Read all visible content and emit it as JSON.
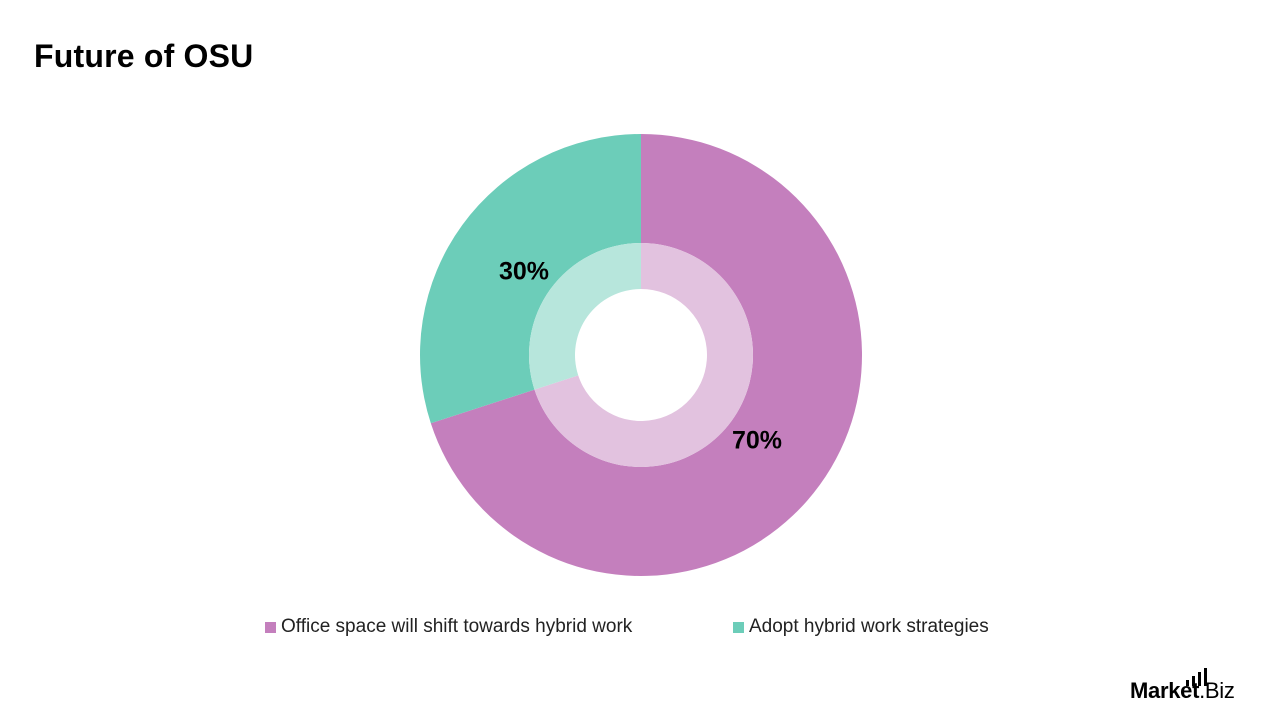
{
  "title": "Future of OSU",
  "chart_data": {
    "type": "pie",
    "subtype": "donut",
    "title": "Future of OSU",
    "categories": [
      "Office space will shift towards hybrid work",
      "Adopt hybrid work strategies"
    ],
    "values": [
      70,
      30
    ],
    "labels": [
      "70%",
      "30%"
    ],
    "colors": [
      "#c47fbd",
      "#6ccdb9"
    ],
    "inner_ring_colors": [
      "#e2c2df",
      "#b7e6dc"
    ],
    "legend_position": "bottom"
  },
  "legend": {
    "items": [
      {
        "label": "Office space will shift towards hybrid work",
        "color": "#c47fbd"
      },
      {
        "label": "Adopt hybrid work strategies",
        "color": "#6ccdb9"
      }
    ]
  },
  "data_labels": {
    "slice0": "70%",
    "slice1": "30%"
  },
  "logo": {
    "main": "Market",
    "suffix": ".Biz"
  }
}
